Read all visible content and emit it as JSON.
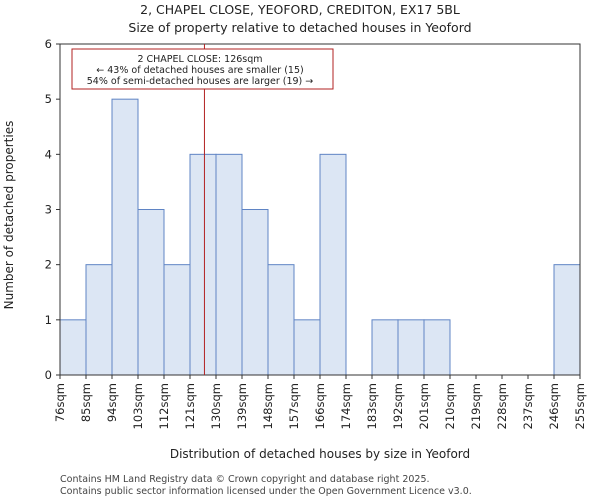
{
  "title_line1": "2, CHAPEL CLOSE, YEOFORD, CREDITON, EX17 5BL",
  "title_line2": "Size of property relative to detached houses in Yeoford",
  "footer_line1": "Contains HM Land Registry data © Crown copyright and database right 2025.",
  "footer_line2": "Contains public sector information licensed under the Open Government Licence v3.0.",
  "colors": {
    "bar_fill": "#dce6f4",
    "bar_edge": "#5f84c4",
    "marker": "#b22222"
  },
  "chart_data": {
    "type": "bar",
    "xlabel": "Distribution of detached houses by size in Yeoford",
    "ylabel": "Number of detached properties",
    "ylim": [
      0,
      6
    ],
    "yticks": [
      "0",
      "1",
      "2",
      "3",
      "4",
      "5",
      "6"
    ],
    "bin_edges": [
      76,
      85,
      94,
      103,
      112,
      121,
      130,
      139,
      148,
      157,
      166,
      174,
      183,
      192,
      201,
      210,
      219,
      228,
      237,
      246,
      255
    ],
    "tick_labels": [
      "76sqm",
      "85sqm",
      "94sqm",
      "103sqm",
      "112sqm",
      "121sqm",
      "130sqm",
      "139sqm",
      "148sqm",
      "157sqm",
      "166sqm",
      "174sqm",
      "183sqm",
      "192sqm",
      "201sqm",
      "210sqm",
      "219sqm",
      "228sqm",
      "237sqm",
      "246sqm",
      "255sqm"
    ],
    "values": [
      1,
      2,
      5,
      3,
      2,
      4,
      4,
      3,
      2,
      1,
      4,
      0,
      1,
      1,
      1,
      0,
      0,
      0,
      0,
      2
    ],
    "marker_value": 126,
    "annotation": {
      "line1": "2 CHAPEL CLOSE: 126sqm",
      "line2": "← 43% of detached houses are smaller (15)",
      "line3": "54% of semi-detached houses are larger (19) →"
    }
  }
}
